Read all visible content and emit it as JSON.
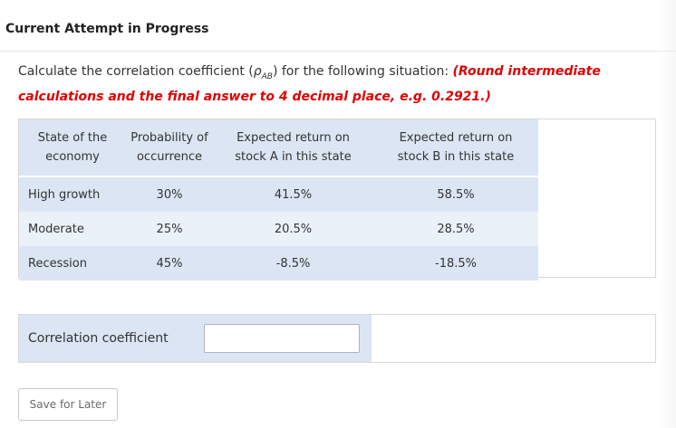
{
  "header": {
    "title": "Current Attempt in Progress"
  },
  "question": {
    "prefix": "Calculate the correlation coefficient (",
    "rho_symbol": "ρ",
    "rho_subscript": "AB",
    "suffix": ") for the following situation: ",
    "instruction": "(Round intermediate calculations and the final answer to 4 decimal place, e.g. 0.2921.)"
  },
  "table": {
    "headers": [
      [
        "State of the",
        "economy"
      ],
      [
        "Probability of",
        "occurrence"
      ],
      [
        "Expected return on",
        "stock A in this state"
      ],
      [
        "Expected return on",
        "stock B in this state"
      ]
    ],
    "rows": [
      {
        "state": "High growth",
        "probability": "30%",
        "return_a": "41.5%",
        "return_b": "58.5%"
      },
      {
        "state": "Moderate",
        "probability": "25%",
        "return_a": "20.5%",
        "return_b": "28.5%"
      },
      {
        "state": "Recession",
        "probability": "45%",
        "return_a": "-8.5%",
        "return_b": "-18.5%"
      }
    ]
  },
  "answer": {
    "label": "Correlation coefficient",
    "value": "",
    "placeholder": ""
  },
  "buttons": {
    "save_label": "Save for Later"
  },
  "colors": {
    "instruction": "#e00000",
    "table_header_bg": "#dbe5f3",
    "table_row_alt_bg": "#ebf1f9"
  }
}
